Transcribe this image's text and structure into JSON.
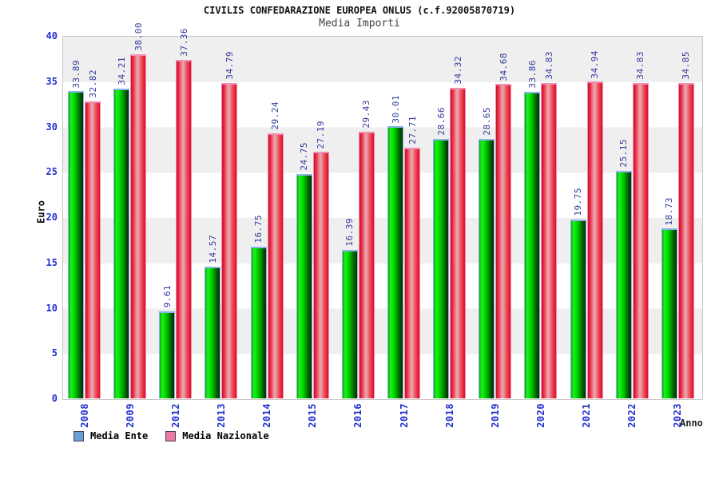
{
  "chart_data": {
    "type": "bar",
    "title": "CIVILIS CONFEDARAZIONE EUROPEA ONLUS (c.f.92005870719)",
    "subtitle": "Media Importi",
    "xlabel": "Anno",
    "ylabel": "Euro",
    "ylim": [
      0,
      40
    ],
    "y_ticks": [
      0,
      5,
      10,
      15,
      20,
      25,
      30,
      35,
      40
    ],
    "grid": "alternating horizontal gray/white bands every 5 units",
    "legend_position": "bottom-left",
    "categories": [
      "2008",
      "2009",
      "2012",
      "2013",
      "2014",
      "2015",
      "2016",
      "2017",
      "2018",
      "2019",
      "2020",
      "2021",
      "2022",
      "2023"
    ],
    "series": [
      {
        "name": "Media Ente",
        "legend_color": "#6a9ed6",
        "bar_style": "green-gradient-cylinder",
        "values": [
          33.89,
          34.21,
          9.61,
          14.57,
          16.75,
          24.75,
          16.39,
          30.01,
          28.66,
          28.65,
          33.86,
          19.75,
          25.15,
          18.73
        ],
        "labels": [
          "33.89",
          "34.21",
          "9.61",
          "14.57",
          "16.75",
          "24.75",
          "16.39",
          "30.01",
          "28.66",
          "28.65",
          "33.86",
          "19.75",
          "25.15",
          "18.73"
        ]
      },
      {
        "name": "Media Nazionale",
        "legend_color": "#ec7aa4",
        "bar_style": "red-gradient-cylinder",
        "values": [
          32.82,
          38.0,
          37.36,
          34.79,
          29.24,
          27.19,
          29.43,
          27.71,
          34.32,
          34.68,
          34.83,
          34.94,
          34.83,
          34.85
        ],
        "labels": [
          "32.82",
          "38.00",
          "37.36",
          "34.79",
          "29.24",
          "27.19",
          "29.43",
          "27.71",
          "34.32",
          "34.68",
          "34.83",
          "34.94",
          "34.83",
          "34.85"
        ]
      }
    ]
  },
  "colors": {
    "tick_label_blue": "#2230d0",
    "value_label_blue": "#333b9e",
    "band_gray": "#efefef",
    "plot_border": "#c6c6c6",
    "green_bar_border": "#8db4e8",
    "red_bar_border": "#f08fb4"
  }
}
